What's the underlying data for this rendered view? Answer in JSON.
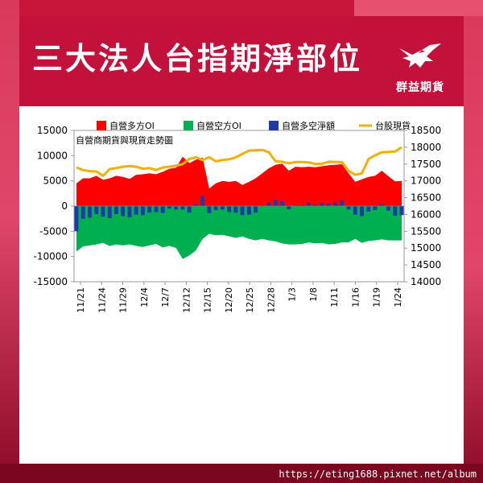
{
  "page": {
    "title": "三大法人台指期淨部位",
    "logo_text": "群益期貨",
    "footer_url": "https://eting1688.pixnet.net/album"
  },
  "colors": {
    "background": "#c8153a",
    "header": "#c2113a",
    "long_oi": "#ff0000",
    "short_oi": "#00b050",
    "net": "#1f3aa8",
    "spot": "#f2b000"
  },
  "chart_data": {
    "type": "area",
    "title": "自營商期貨與現貨走勢圖",
    "x_ticks": [
      "11/21",
      "11/24",
      "11/29",
      "12/4",
      "12/7",
      "12/12",
      "12/15",
      "12/20",
      "12/25",
      "12/28",
      "1/3",
      "1/8",
      "1/11",
      "1/16",
      "1/19",
      "1/24"
    ],
    "y_left": {
      "min": -15000,
      "max": 15000,
      "ticks": [
        "15000",
        "10000",
        "5000",
        "0",
        "-5000",
        "-10000",
        "-15000"
      ]
    },
    "y_right": {
      "min": 14000,
      "max": 18500,
      "ticks": [
        "18500",
        "18000",
        "17500",
        "17000",
        "16500",
        "16000",
        "15500",
        "15000",
        "14500",
        "14000"
      ]
    },
    "legend": [
      "自營多方OI",
      "自營空方OI",
      "自營多空淨額",
      "台股現貨"
    ],
    "grid": false,
    "legend_position": "top",
    "series": [
      {
        "name": "自營多方OI",
        "kind": "area",
        "axis": "left",
        "values": [
          4500,
          5500,
          5500,
          6000,
          5200,
          5500,
          6000,
          5800,
          5400,
          6200,
          6300,
          6500,
          6300,
          6800,
          7400,
          7600,
          9800,
          8500,
          9200,
          9600,
          3500,
          4500,
          5000,
          4800,
          5000,
          4200,
          4800,
          5500,
          6500,
          7500,
          8200,
          8400,
          7000,
          7800,
          7700,
          7800,
          7700,
          7900,
          8100,
          8200,
          8300,
          6500,
          4800,
          5300,
          5800,
          6000,
          7000,
          5900,
          4900,
          5000
        ]
      },
      {
        "name": "自營空方OI",
        "kind": "area",
        "axis": "left",
        "values": [
          -9000,
          -8000,
          -7800,
          -7600,
          -7300,
          -7900,
          -7600,
          -7800,
          -7600,
          -7900,
          -8100,
          -7800,
          -7500,
          -8200,
          -7900,
          -8300,
          -10500,
          -9800,
          -8800,
          -6500,
          -5500,
          -5800,
          -5700,
          -6000,
          -6300,
          -6000,
          -6500,
          -6800,
          -6500,
          -6800,
          -7000,
          -7400,
          -7600,
          -7600,
          -7500,
          -7200,
          -7400,
          -7300,
          -7600,
          -7500,
          -7200,
          -7200,
          -6500,
          -7300,
          -6900,
          -6800,
          -6600,
          -6800,
          -6800,
          -6800
        ]
      },
      {
        "name": "自營多空淨額",
        "kind": "bar",
        "axis": "left",
        "values": [
          -5000,
          -2500,
          -2300,
          -1600,
          -2100,
          -2400,
          -1600,
          -2000,
          -2200,
          -1700,
          -1800,
          -1300,
          -1200,
          -1400,
          -500,
          -700,
          -700,
          -1300,
          400,
          2000,
          -1400,
          -800,
          -700,
          -1200,
          -1300,
          -1800,
          -1700,
          -1300,
          0,
          700,
          1200,
          1000,
          -600,
          200,
          200,
          600,
          300,
          600,
          500,
          700,
          1100,
          -700,
          -1700,
          -2000,
          -1100,
          -800,
          400,
          -900,
          -1900,
          -1800
        ]
      },
      {
        "name": "台股現貨",
        "kind": "line",
        "axis": "right",
        "values": [
          17400,
          17320,
          17290,
          17280,
          17150,
          17350,
          17380,
          17420,
          17440,
          17420,
          17360,
          17380,
          17320,
          17400,
          17420,
          17450,
          17500,
          17650,
          17700,
          17620,
          17700,
          17580,
          17620,
          17640,
          17700,
          17800,
          17900,
          17910,
          17920,
          17850,
          17580,
          17570,
          17520,
          17560,
          17560,
          17550,
          17500,
          17510,
          17570,
          17560,
          17560,
          17300,
          17180,
          17220,
          17650,
          17760,
          17850,
          17860,
          17870,
          18000
        ]
      }
    ]
  }
}
